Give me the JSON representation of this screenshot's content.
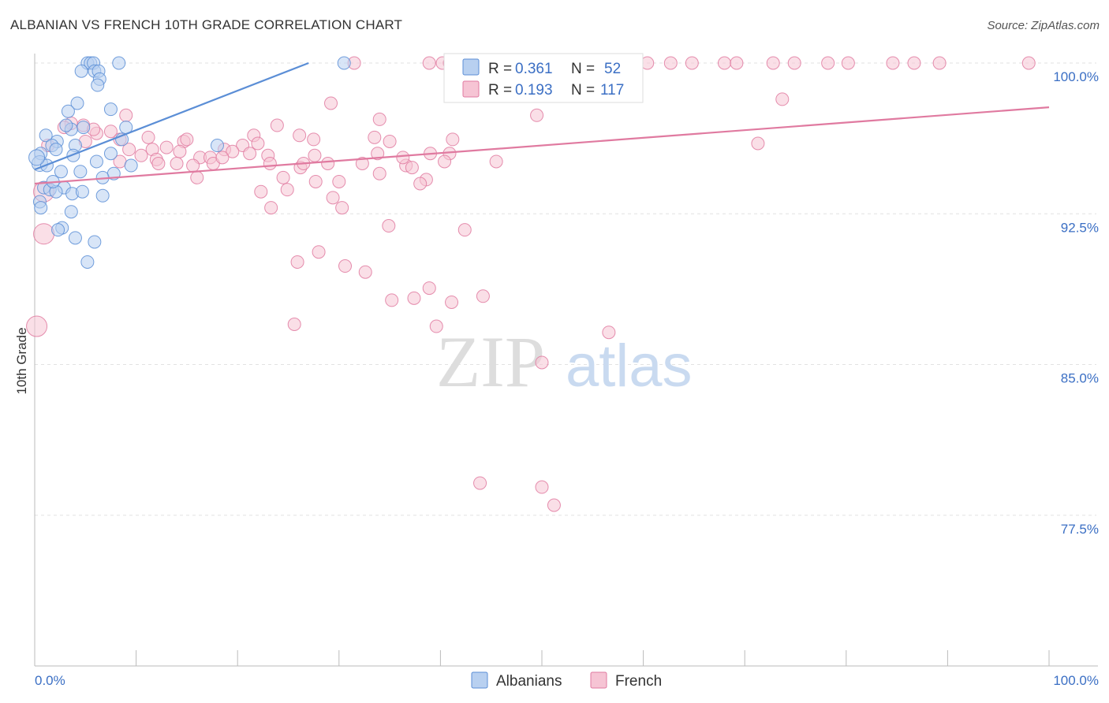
{
  "header": {
    "title": "ALBANIAN VS FRENCH 10TH GRADE CORRELATION CHART",
    "source": "Source: ZipAtlas.com"
  },
  "watermark": {
    "zip": "ZIP",
    "atlas": "atlas"
  },
  "legend_box": {
    "rows": [
      {
        "r_label": "R =",
        "r_value": "0.361",
        "n_label": "N =",
        "n_value": "52",
        "color": "#5b8ed6",
        "fill": "#b8d0f0"
      },
      {
        "r_label": "R =",
        "r_value": "0.193",
        "n_label": "N =",
        "n_value": "117",
        "color": "#e07aa0",
        "fill": "#f6c4d4"
      }
    ]
  },
  "bottom_legend": [
    {
      "label": "Albanians",
      "fill": "#b8d0f0",
      "stroke": "#5b8ed6"
    },
    {
      "label": "French",
      "fill": "#f6c4d4",
      "stroke": "#e07aa0"
    }
  ],
  "chart_data": {
    "type": "scatter",
    "title": "ALBANIAN VS FRENCH 10TH GRADE CORRELATION CHART",
    "xlabel": "",
    "ylabel": "10th Grade",
    "xlim": [
      0,
      100
    ],
    "ylim": [
      70,
      100
    ],
    "x_tick_labels": [
      "0.0%",
      "100.0%"
    ],
    "y_ticks": [
      77.5,
      85.0,
      92.5,
      100.0
    ],
    "y_tick_labels": [
      "77.5%",
      "85.0%",
      "92.5%",
      "100.0%"
    ],
    "grid": true,
    "series": [
      {
        "name": "Albanians",
        "color": "#5b8ed6",
        "fill": "#b8d0f0",
        "trend": {
          "x0": 0,
          "y0": 94.7,
          "x1": 27,
          "y1": 100
        },
        "points": [
          [
            5.2,
            100
          ],
          [
            5.5,
            100
          ],
          [
            5.8,
            100
          ],
          [
            8.3,
            100
          ],
          [
            30.5,
            100
          ],
          [
            4.6,
            99.6
          ],
          [
            5.9,
            99.6
          ],
          [
            6.3,
            99.6
          ],
          [
            6.4,
            99.2
          ],
          [
            6.2,
            98.9
          ],
          [
            4.2,
            98.0
          ],
          [
            7.5,
            97.7
          ],
          [
            3.3,
            97.6
          ],
          [
            9.0,
            96.8
          ],
          [
            3.6,
            96.7
          ],
          [
            4.8,
            96.8
          ],
          [
            1.1,
            96.4
          ],
          [
            2.2,
            96.1
          ],
          [
            4.0,
            95.9
          ],
          [
            8.6,
            96.2
          ],
          [
            1.7,
            95.9
          ],
          [
            2.1,
            95.7
          ],
          [
            18.0,
            95.9
          ],
          [
            0.6,
            95.5
          ],
          [
            3.8,
            95.4
          ],
          [
            7.5,
            95.5
          ],
          [
            0.5,
            95.0
          ],
          [
            1.2,
            94.9
          ],
          [
            9.5,
            94.9
          ],
          [
            2.6,
            94.6
          ],
          [
            4.5,
            94.6
          ],
          [
            7.8,
            94.5
          ],
          [
            6.7,
            94.3
          ],
          [
            0.9,
            93.8
          ],
          [
            1.5,
            93.7
          ],
          [
            2.9,
            93.8
          ],
          [
            3.7,
            93.5
          ],
          [
            4.7,
            93.6
          ],
          [
            2.1,
            93.6
          ],
          [
            6.7,
            93.4
          ],
          [
            0.5,
            93.1
          ],
          [
            0.6,
            92.8
          ],
          [
            3.6,
            92.6
          ],
          [
            2.7,
            91.8
          ],
          [
            2.3,
            91.7
          ],
          [
            4.0,
            91.3
          ],
          [
            5.9,
            91.1
          ],
          [
            5.2,
            90.1
          ],
          [
            0.2,
            95.3
          ],
          [
            1.8,
            94.1
          ],
          [
            3.1,
            96.9
          ],
          [
            6.1,
            95.1
          ]
        ]
      },
      {
        "name": "French",
        "color": "#e07aa0",
        "fill": "#f6c4d4",
        "trend": {
          "x0": 0,
          "y0": 94.0,
          "x1": 100,
          "y1": 97.8
        },
        "points": [
          [
            31.5,
            100
          ],
          [
            38.9,
            100
          ],
          [
            40.2,
            100
          ],
          [
            40.9,
            100
          ],
          [
            42.9,
            100
          ],
          [
            47.4,
            100
          ],
          [
            49.3,
            100
          ],
          [
            51.3,
            100
          ],
          [
            52.5,
            100
          ],
          [
            54.2,
            100
          ],
          [
            56.1,
            100
          ],
          [
            58.7,
            100
          ],
          [
            60.4,
            100
          ],
          [
            62.7,
            100
          ],
          [
            64.8,
            100
          ],
          [
            68.0,
            100
          ],
          [
            69.2,
            100
          ],
          [
            72.8,
            100
          ],
          [
            74.9,
            100
          ],
          [
            78.2,
            100
          ],
          [
            80.2,
            100
          ],
          [
            84.6,
            100
          ],
          [
            86.7,
            100
          ],
          [
            89.2,
            100
          ],
          [
            98.0,
            100
          ],
          [
            73.7,
            98.2
          ],
          [
            29.2,
            98.0
          ],
          [
            49.5,
            97.4
          ],
          [
            34.0,
            97.2
          ],
          [
            23.9,
            96.9
          ],
          [
            3.6,
            97.0
          ],
          [
            4.8,
            96.9
          ],
          [
            2.9,
            96.8
          ],
          [
            6.1,
            96.5
          ],
          [
            7.5,
            96.6
          ],
          [
            8.4,
            96.2
          ],
          [
            11.2,
            96.3
          ],
          [
            14.7,
            96.1
          ],
          [
            21.6,
            96.4
          ],
          [
            26.1,
            96.4
          ],
          [
            33.5,
            96.3
          ],
          [
            35.0,
            96.1
          ],
          [
            27.5,
            96.2
          ],
          [
            41.2,
            96.2
          ],
          [
            71.3,
            96.0
          ],
          [
            1.3,
            95.9
          ],
          [
            5.0,
            96.1
          ],
          [
            9.3,
            95.7
          ],
          [
            11.6,
            95.7
          ],
          [
            13.0,
            95.8
          ],
          [
            14.3,
            95.6
          ],
          [
            18.7,
            95.7
          ],
          [
            20.5,
            95.9
          ],
          [
            23.0,
            95.4
          ],
          [
            27.6,
            95.4
          ],
          [
            33.8,
            95.5
          ],
          [
            39.0,
            95.5
          ],
          [
            40.9,
            95.5
          ],
          [
            10.5,
            95.4
          ],
          [
            12.0,
            95.2
          ],
          [
            16.3,
            95.3
          ],
          [
            17.3,
            95.3
          ],
          [
            19.5,
            95.6
          ],
          [
            21.2,
            95.5
          ],
          [
            23.2,
            95.0
          ],
          [
            28.9,
            95.0
          ],
          [
            32.3,
            95.0
          ],
          [
            36.6,
            94.9
          ],
          [
            37.2,
            94.8
          ],
          [
            40.4,
            95.1
          ],
          [
            8.4,
            95.1
          ],
          [
            12.2,
            95.0
          ],
          [
            14.0,
            95.0
          ],
          [
            15.6,
            94.9
          ],
          [
            17.6,
            95.0
          ],
          [
            26.2,
            94.8
          ],
          [
            36.3,
            95.3
          ],
          [
            16.0,
            94.3
          ],
          [
            24.5,
            94.3
          ],
          [
            27.7,
            94.1
          ],
          [
            30.0,
            94.1
          ],
          [
            38.6,
            94.2
          ],
          [
            38.0,
            94.0
          ],
          [
            0.9,
            93.6
          ],
          [
            22.3,
            93.6
          ],
          [
            24.9,
            93.7
          ],
          [
            29.4,
            93.3
          ],
          [
            23.3,
            92.8
          ],
          [
            30.3,
            92.8
          ],
          [
            34.9,
            91.9
          ],
          [
            42.4,
            91.7
          ],
          [
            0.9,
            91.5
          ],
          [
            28.0,
            90.6
          ],
          [
            25.9,
            90.1
          ],
          [
            30.6,
            89.9
          ],
          [
            32.6,
            89.6
          ],
          [
            38.9,
            88.8
          ],
          [
            37.4,
            88.3
          ],
          [
            35.2,
            88.2
          ],
          [
            41.1,
            88.1
          ],
          [
            44.2,
            88.4
          ],
          [
            25.6,
            87.0
          ],
          [
            39.6,
            86.9
          ],
          [
            0.2,
            86.9
          ],
          [
            56.6,
            86.6
          ],
          [
            50.0,
            85.1
          ],
          [
            43.9,
            79.1
          ],
          [
            50.0,
            78.9
          ],
          [
            51.2,
            78.0
          ],
          [
            15.0,
            96.2
          ],
          [
            18.5,
            95.3
          ],
          [
            9.0,
            97.4
          ],
          [
            26.5,
            95.0
          ],
          [
            34.0,
            94.5
          ],
          [
            45.5,
            95.1
          ],
          [
            22.0,
            96.0
          ],
          [
            5.8,
            96.7
          ]
        ]
      }
    ]
  }
}
